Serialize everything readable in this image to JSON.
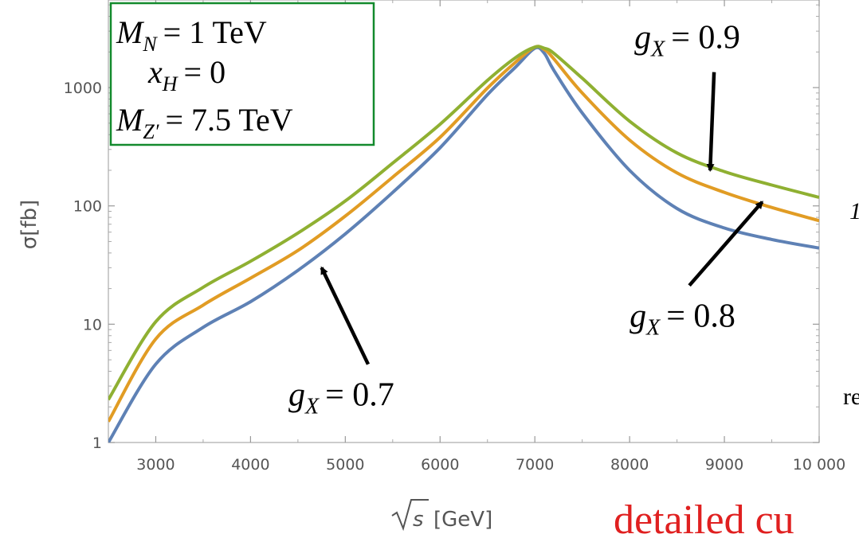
{
  "chart_data": {
    "type": "line",
    "title": "",
    "xlabel_radicand": "s",
    "xlabel_unit": "[GeV]",
    "ylabel": "σ[fb]",
    "xlim": [
      2500,
      10000
    ],
    "ylim": [
      1,
      5500
    ],
    "yscale": "log",
    "grid": false,
    "xticks": [
      3000,
      4000,
      5000,
      6000,
      7000,
      8000,
      9000,
      10000
    ],
    "xtick_labels": [
      "3000",
      "4000",
      "5000",
      "6000",
      "7000",
      "8000",
      "9000",
      "10 000"
    ],
    "yticks": [
      1,
      10,
      100,
      1000
    ],
    "ytick_labels": [
      "1",
      "10",
      "100",
      "1000"
    ],
    "x": [
      2500,
      3000,
      3500,
      4000,
      4500,
      5000,
      5500,
      6000,
      6500,
      6800,
      7000,
      7100,
      7200,
      7500,
      8000,
      8500,
      9000,
      9500,
      10000
    ],
    "series": [
      {
        "label_lhs": "g",
        "label_sub": "X",
        "label_rhs": "= 0.7",
        "color": "#5e81b5",
        "values": [
          1.0,
          4.6,
          9.4,
          15.5,
          28.5,
          58,
          130,
          310,
          870,
          1500,
          2150,
          1950,
          1400,
          610,
          200,
          95,
          65,
          52,
          44
        ]
      },
      {
        "label_lhs": "g",
        "label_sub": "X",
        "label_rhs": "= 0.8",
        "color": "#e19c24",
        "values": [
          1.5,
          7.5,
          14.5,
          24.5,
          42,
          82,
          175,
          380,
          990,
          1650,
          2200,
          2100,
          1750,
          900,
          360,
          190,
          130,
          97,
          75
        ]
      },
      {
        "label_lhs": "g",
        "label_sub": "X",
        "label_rhs": "= 0.9",
        "color": "#8fb032",
        "values": [
          2.3,
          10.5,
          20.5,
          34,
          59,
          110,
          230,
          490,
          1150,
          1800,
          2200,
          2150,
          1950,
          1200,
          520,
          280,
          195,
          150,
          118
        ]
      }
    ],
    "annotations": [
      {
        "series_index": 0,
        "tip": [
          4750,
          30
        ],
        "text_at": [
          4400,
          2.05
        ]
      },
      {
        "series_index": 1,
        "tip": [
          9400,
          108
        ],
        "text_at": [
          8000,
          9.5
        ]
      },
      {
        "series_index": 2,
        "tip": [
          8850,
          200
        ],
        "text_at": [
          8050,
          2150
        ]
      }
    ],
    "infobox": {
      "mn_lhs": "M",
      "mn_sub": "N",
      "mn_rhs": "= 1 TeV",
      "xh_lhs": "x",
      "xh_sub": "H",
      "xh_rhs": "= 0",
      "mz_lhs": "M",
      "mz_sub": "Z′",
      "mz_rhs": "= 7.5 TeV",
      "border_color": "#138a2d"
    }
  },
  "page": {
    "stray_text_1": "detailed cu",
    "stray_text_2": "re",
    "stray_text_3": "1",
    "stray_text_color": "#e02020"
  }
}
